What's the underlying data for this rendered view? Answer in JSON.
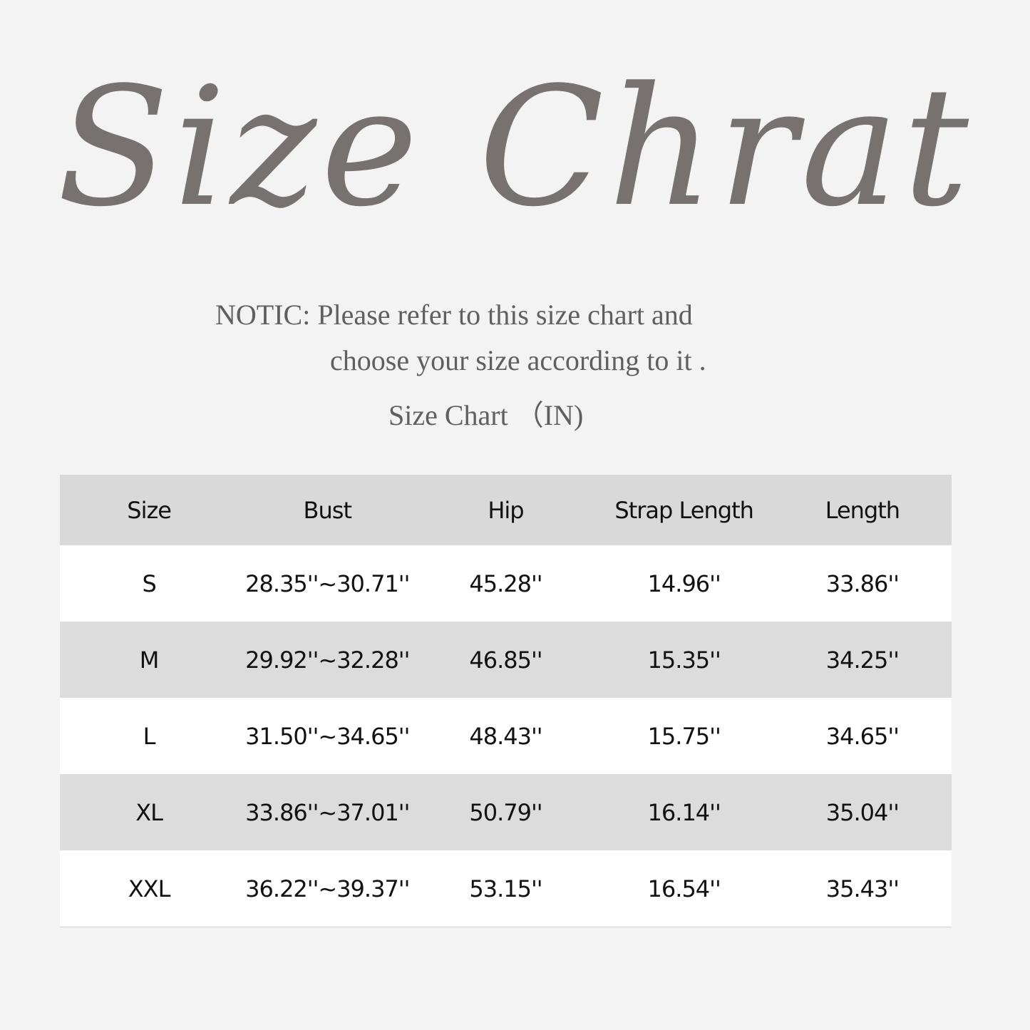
{
  "title": "Size Chrat",
  "notice": {
    "line1": "NOTIC: Please refer to this size chart and",
    "line2": "choose your size according to it .",
    "line3": "Size Chart （IN)"
  },
  "colors": {
    "background": "#f3f3f3",
    "title": "#777170",
    "header": "#d9d9d9",
    "stripe": "#dcdcdc"
  },
  "table": {
    "headers": [
      "Size",
      "Bust",
      "Hip",
      "Strap Length",
      "Length"
    ],
    "rows": [
      [
        "S",
        "28.35''~30.71''",
        "45.28''",
        "14.96''",
        "33.86''"
      ],
      [
        "M",
        "29.92''~32.28''",
        "46.85''",
        "15.35''",
        "34.25''"
      ],
      [
        "L",
        "31.50''~34.65''",
        "48.43''",
        "15.75''",
        "34.65''"
      ],
      [
        "XL",
        "33.86''~37.01''",
        "50.79''",
        "16.14''",
        "35.04''"
      ],
      [
        "XXL",
        "36.22''~39.37''",
        "53.15''",
        "16.54''",
        "35.43''"
      ]
    ]
  }
}
